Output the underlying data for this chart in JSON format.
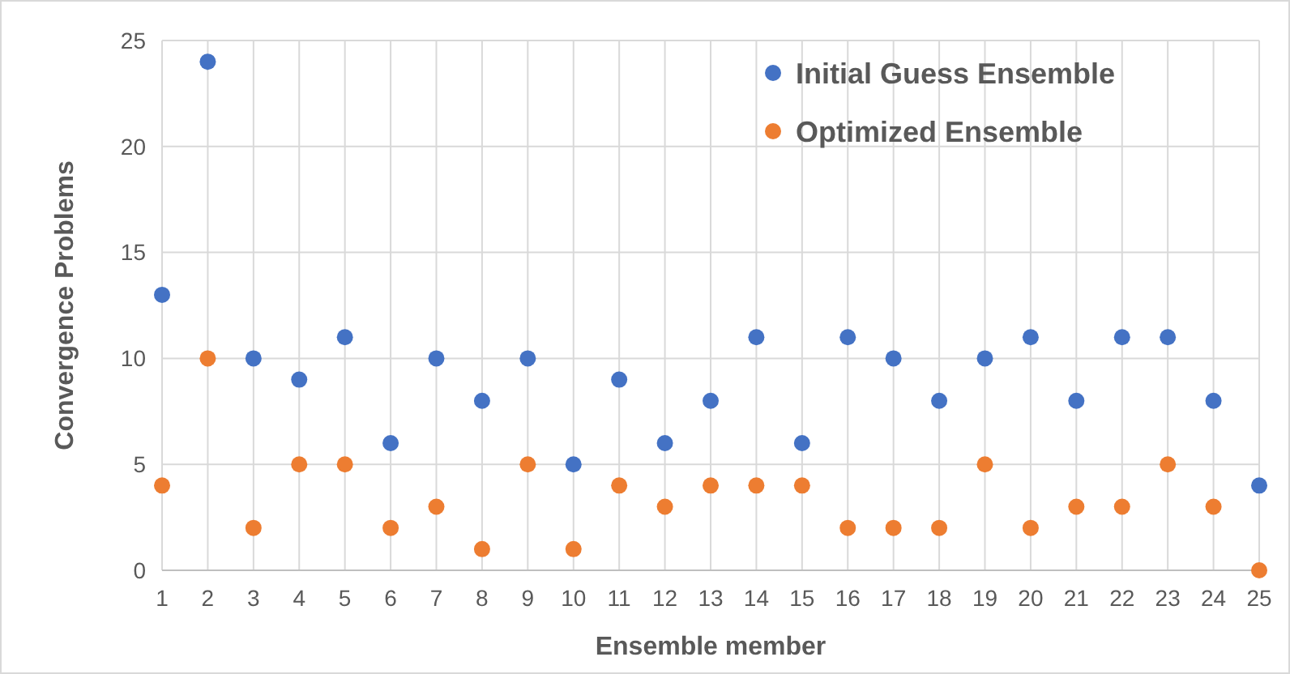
{
  "chart_data": {
    "type": "scatter",
    "xlabel": "Ensemble member",
    "ylabel": "Convergence Problems",
    "x": [
      1,
      2,
      3,
      4,
      5,
      6,
      7,
      8,
      9,
      10,
      11,
      12,
      13,
      14,
      15,
      16,
      17,
      18,
      19,
      20,
      21,
      22,
      23,
      24,
      25
    ],
    "series": [
      {
        "name": "Initial Guess Ensemble",
        "color": "#4472c4",
        "values": [
          13,
          24,
          10,
          9,
          11,
          6,
          10,
          8,
          10,
          5,
          9,
          6,
          8,
          11,
          6,
          11,
          10,
          8,
          10,
          11,
          8,
          11,
          11,
          8,
          4
        ]
      },
      {
        "name": "Optimized Ensemble",
        "color": "#ed7d31",
        "values": [
          4,
          10,
          2,
          5,
          5,
          2,
          3,
          1,
          5,
          1,
          4,
          3,
          4,
          4,
          4,
          2,
          2,
          2,
          5,
          2,
          3,
          3,
          5,
          3,
          0
        ]
      }
    ],
    "xlim": [
      1,
      25
    ],
    "xticks": [
      1,
      2,
      3,
      4,
      5,
      6,
      7,
      8,
      9,
      10,
      11,
      12,
      13,
      14,
      15,
      16,
      17,
      18,
      19,
      20,
      21,
      22,
      23,
      24,
      25
    ],
    "ylim": [
      0,
      25
    ],
    "yticks": [
      0,
      5,
      10,
      15,
      20,
      25
    ],
    "grid": true,
    "legend": "top right",
    "marker": "circle"
  }
}
